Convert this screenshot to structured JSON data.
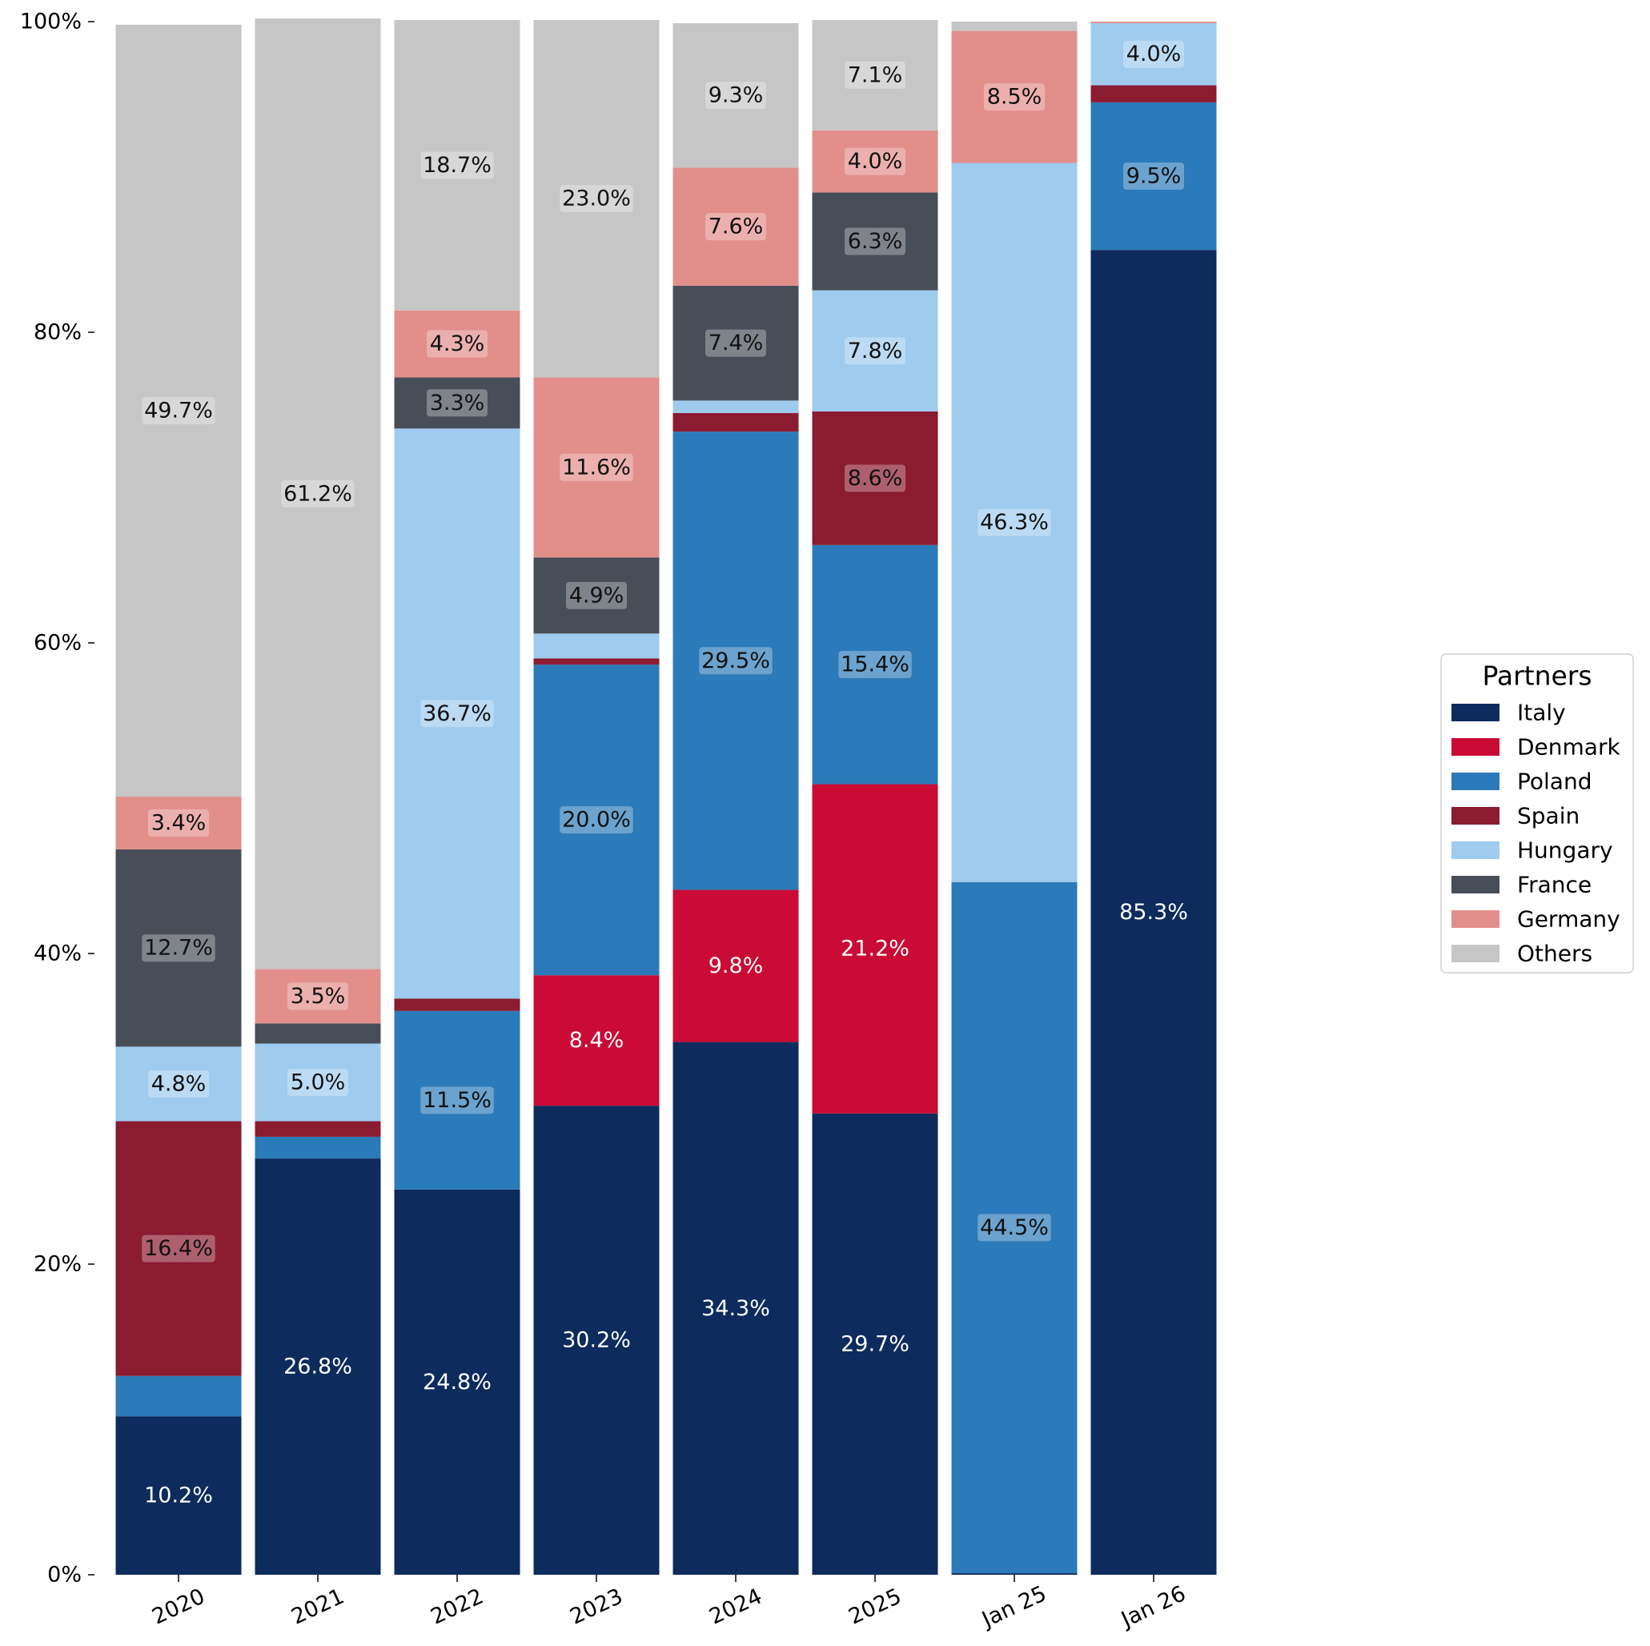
{
  "chart_data": {
    "type": "bar",
    "stacked": true,
    "title": "",
    "xlabel": "",
    "ylabel": "",
    "ylim": [
      0,
      100
    ],
    "y_tick_labels": [
      "0%",
      "20%",
      "40%",
      "60%",
      "80%",
      "100%"
    ],
    "categories": [
      "2020",
      "2021",
      "2022",
      "2023",
      "2024",
      "2025",
      "Jan 25",
      "Jan 26"
    ],
    "legend": {
      "title": "Partners",
      "position": "center-right"
    },
    "series": [
      {
        "name": "Italy",
        "color": "#0d2b5c",
        "values": [
          10.2,
          26.8,
          24.8,
          30.2,
          34.3,
          29.7,
          0.1,
          85.3
        ],
        "labels": [
          "10.2%",
          "26.8%",
          "24.8%",
          "30.2%",
          "34.3%",
          "29.7%",
          "",
          "85.3%"
        ]
      },
      {
        "name": "Denmark",
        "color": "#c90b35",
        "values": [
          0,
          0,
          0,
          8.4,
          9.8,
          21.2,
          0,
          0
        ],
        "labels": [
          "",
          "",
          "",
          "8.4%",
          "9.8%",
          "21.2%",
          "",
          ""
        ]
      },
      {
        "name": "Poland",
        "color": "#2b7ab9",
        "values": [
          2.6,
          1.4,
          11.5,
          20.0,
          29.5,
          15.4,
          44.5,
          9.5
        ],
        "labels": [
          "",
          "",
          "11.5%",
          "20.0%",
          "29.5%",
          "15.4%",
          "44.5%",
          "9.5%"
        ]
      },
      {
        "name": "Spain",
        "color": "#8a1b30",
        "values": [
          16.4,
          1.0,
          0.8,
          0.4,
          1.2,
          8.6,
          0,
          1.1
        ],
        "labels": [
          "16.4%",
          "",
          "",
          "",
          "",
          "8.6%",
          "",
          ""
        ]
      },
      {
        "name": "Hungary",
        "color": "#9ecbee",
        "values": [
          4.8,
          5.0,
          36.7,
          1.6,
          0.8,
          7.8,
          46.3,
          4.0
        ],
        "labels": [
          "4.8%",
          "5.0%",
          "36.7%",
          "",
          "",
          "7.8%",
          "46.3%",
          "4.0%"
        ]
      },
      {
        "name": "France",
        "color": "#484e58",
        "values": [
          12.7,
          1.3,
          3.3,
          4.9,
          7.4,
          6.3,
          0,
          0
        ],
        "labels": [
          "12.7%",
          "",
          "3.3%",
          "4.9%",
          "7.4%",
          "6.3%",
          "",
          ""
        ]
      },
      {
        "name": "Germany",
        "color": "#e28f8c",
        "values": [
          3.4,
          3.5,
          4.3,
          11.6,
          7.6,
          4.0,
          8.5,
          0.1
        ],
        "labels": [
          "3.4%",
          "3.5%",
          "4.3%",
          "11.6%",
          "7.6%",
          "4.0%",
          "8.5%",
          ""
        ]
      },
      {
        "name": "Others",
        "color": "#c6c6c6",
        "values": [
          49.7,
          61.2,
          18.7,
          23.0,
          9.3,
          7.1,
          0.6,
          0
        ],
        "labels": [
          "49.7%",
          "61.2%",
          "18.7%",
          "23.0%",
          "9.3%",
          "7.1%",
          "",
          ""
        ]
      }
    ]
  }
}
